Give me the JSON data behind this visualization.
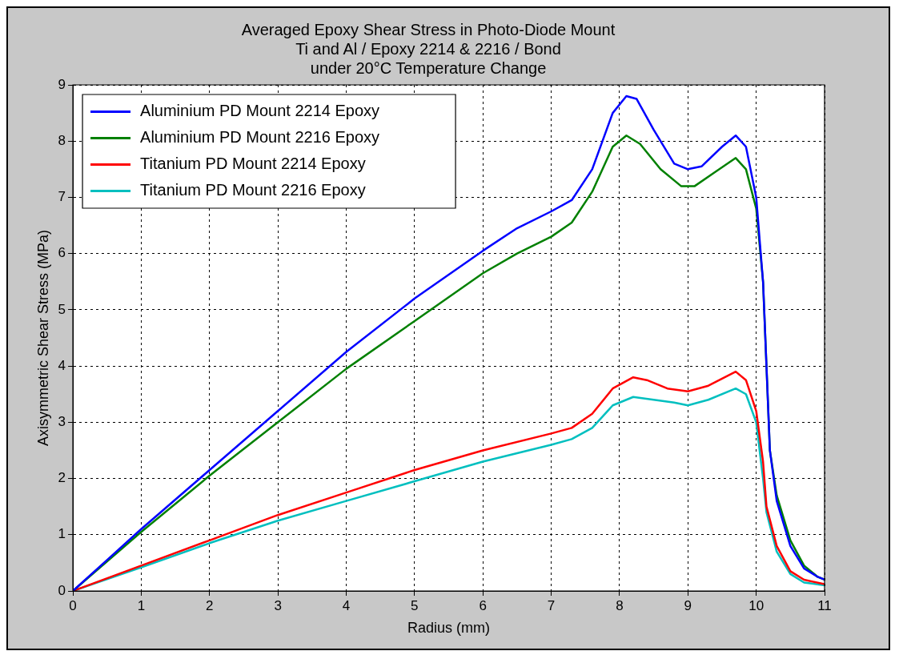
{
  "chart_data": {
    "type": "line",
    "title": [
      "Averaged Epoxy Shear Stress in Photo-Diode Mount",
      "Ti and Al / Epoxy 2214 & 2216 / Bond",
      "under 20°C Temperature Change"
    ],
    "xlabel": "Radius (mm)",
    "ylabel": "Axisymmetric Shear Stress (MPa)",
    "xlim": [
      0,
      11
    ],
    "xticks": [
      0,
      1,
      2,
      3,
      4,
      5,
      6,
      7,
      8,
      9,
      10,
      11
    ],
    "ylim": [
      0,
      9
    ],
    "yticks": [
      0,
      1,
      2,
      3,
      4,
      5,
      6,
      7,
      8,
      9
    ],
    "grid": true,
    "line_style": "solid",
    "marker": "none",
    "legend": "top left",
    "series": [
      {
        "name": "Aluminium PD Mount 2214 Epoxy",
        "color": "#0000ff",
        "x": [
          0,
          0.5,
          1,
          2,
          3,
          4,
          5,
          6,
          6.5,
          7,
          7.3,
          7.6,
          7.9,
          8.1,
          8.25,
          8.5,
          8.8,
          9,
          9.2,
          9.5,
          9.7,
          9.85,
          10,
          10.1,
          10.15,
          10.2,
          10.3,
          10.5,
          10.7,
          10.9,
          11
        ],
        "values": [
          0,
          0.55,
          1.1,
          2.15,
          3.2,
          4.25,
          5.2,
          6.05,
          6.45,
          6.75,
          6.95,
          7.5,
          8.5,
          8.8,
          8.75,
          8.2,
          7.6,
          7.5,
          7.55,
          7.9,
          8.1,
          7.9,
          7.0,
          5.5,
          4,
          2.5,
          1.6,
          0.8,
          0.4,
          0.25,
          0.2
        ]
      },
      {
        "name": "Aluminium PD Mount 2216 Epoxy",
        "color": "#008000",
        "x": [
          0,
          1,
          2,
          3,
          4,
          5,
          6,
          6.5,
          7,
          7.3,
          7.6,
          7.9,
          8.1,
          8.3,
          8.6,
          8.9,
          9.1,
          9.4,
          9.7,
          9.85,
          10,
          10.1,
          10.15,
          10.2,
          10.3,
          10.5,
          10.7,
          10.9,
          11
        ],
        "values": [
          0,
          1.05,
          2.05,
          3.0,
          3.95,
          4.8,
          5.65,
          6.0,
          6.3,
          6.55,
          7.1,
          7.9,
          8.1,
          7.95,
          7.5,
          7.2,
          7.2,
          7.45,
          7.7,
          7.5,
          6.8,
          5.5,
          4,
          2.5,
          1.7,
          0.9,
          0.45,
          0.25,
          0.2
        ]
      },
      {
        "name": "Titanium PD Mount 2214 Epoxy",
        "color": "#ff0000",
        "x": [
          0,
          1,
          2,
          3,
          4,
          5,
          6,
          7,
          7.3,
          7.6,
          7.9,
          8.2,
          8.4,
          8.7,
          9,
          9.3,
          9.7,
          9.85,
          10,
          10.1,
          10.15,
          10.3,
          10.5,
          10.7,
          11
        ],
        "values": [
          0,
          0.45,
          0.9,
          1.35,
          1.75,
          2.15,
          2.5,
          2.8,
          2.9,
          3.15,
          3.6,
          3.8,
          3.75,
          3.6,
          3.55,
          3.65,
          3.9,
          3.75,
          3.2,
          2.3,
          1.5,
          0.8,
          0.35,
          0.2,
          0.12
        ]
      },
      {
        "name": "Titanium PD Mount 2216 Epoxy",
        "color": "#00bfbf",
        "x": [
          0,
          1,
          2,
          3,
          4,
          5,
          6,
          7,
          7.3,
          7.6,
          7.9,
          8.2,
          8.5,
          8.8,
          9,
          9.3,
          9.7,
          9.85,
          10,
          10.1,
          10.15,
          10.3,
          10.5,
          10.7,
          11
        ],
        "values": [
          0,
          0.42,
          0.85,
          1.25,
          1.6,
          1.95,
          2.3,
          2.6,
          2.7,
          2.9,
          3.3,
          3.45,
          3.4,
          3.35,
          3.3,
          3.4,
          3.6,
          3.5,
          3.0,
          2.0,
          1.4,
          0.7,
          0.3,
          0.15,
          0.1
        ]
      }
    ]
  }
}
